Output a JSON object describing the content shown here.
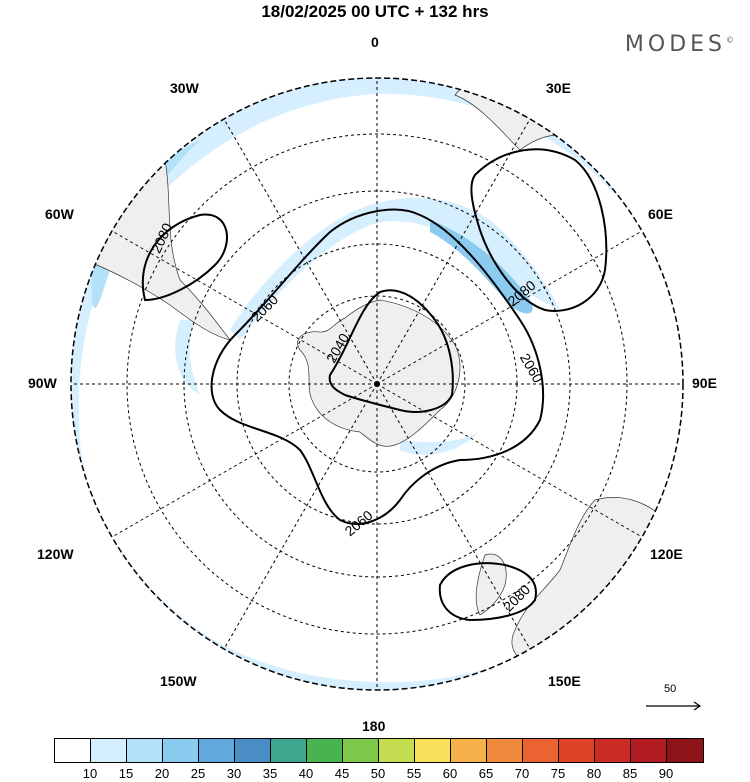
{
  "header": {
    "title": "18/02/2025  00 UTC  + 132 hrs",
    "brand": "MODES",
    "brand_mark": "©"
  },
  "map": {
    "projection": "south-polar-stereographic",
    "meridian_labels": {
      "m0": "0",
      "m30e": "30E",
      "m60e": "60E",
      "m90e": "90E",
      "m120e": "120E",
      "m150e": "150E",
      "m180": "180",
      "m150w": "150W",
      "m120w": "120W",
      "m90w": "90W",
      "m60w": "60W",
      "m30w": "30W"
    },
    "contour_labels": {
      "c2080_west": "2080",
      "c2060_west": "2060",
      "c2040": "2040",
      "c2080_east": "2080",
      "c2060_east": "2060",
      "c2060_south": "2060",
      "c2080_south": "2080"
    },
    "wind_reference_label": "50",
    "colors": {
      "land": "#efefef",
      "wind_10_15": "#d6efff",
      "wind_15_20": "#b4e1fa",
      "wind_20_25": "#8ccbf0"
    }
  },
  "colorbar": {
    "ticks": [
      "10",
      "15",
      "20",
      "25",
      "30",
      "35",
      "40",
      "45",
      "50",
      "55",
      "60",
      "65",
      "70",
      "75",
      "80",
      "85",
      "90"
    ],
    "colors": [
      "#ffffff",
      "#d6efff",
      "#b4e1fa",
      "#8ccbf0",
      "#63a8dc",
      "#4a8cc4",
      "#3ea58f",
      "#48b450",
      "#7dc84a",
      "#c4dc50",
      "#f7e15a",
      "#f5b04a",
      "#ef8a3c",
      "#eb6330",
      "#e04228",
      "#cc2a24",
      "#b01c22",
      "#8c1418"
    ]
  }
}
